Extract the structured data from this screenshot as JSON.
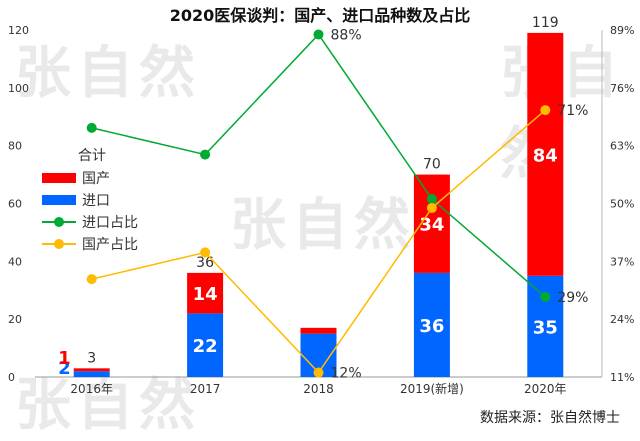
{
  "watermark": "张自然",
  "source": "数据来源：张自然博士",
  "chart_data": {
    "type": "bar",
    "title": "2020医保谈判：国产、进口品种数及占比",
    "categories": [
      "2016年",
      "2017",
      "2018",
      "2019(新增)",
      "2020年"
    ],
    "series": [
      {
        "name": "国产",
        "type": "bar",
        "stack": "total",
        "color": "#ff0000",
        "values": [
          1,
          14,
          2,
          34,
          84
        ],
        "labels": [
          "1",
          "14",
          "",
          "34",
          "84"
        ]
      },
      {
        "name": "进口",
        "type": "bar",
        "stack": "total",
        "color": "#0066ff",
        "values": [
          2,
          22,
          15,
          36,
          35
        ],
        "labels": [
          "2",
          "22",
          "",
          "36",
          "35"
        ]
      },
      {
        "name": "进口占比",
        "type": "line",
        "axis": "right",
        "color": "#00aa33",
        "values": [
          67,
          61,
          88,
          51,
          29
        ],
        "labels": [
          "",
          "",
          "88%",
          "",
          "29%"
        ]
      },
      {
        "name": "国产占比",
        "type": "line",
        "axis": "right",
        "color": "#ffbb00",
        "values": [
          33,
          39,
          12,
          49,
          71
        ],
        "labels": [
          "",
          "",
          "12%",
          "",
          "71%"
        ]
      }
    ],
    "totals": [
      3,
      36,
      17,
      70,
      119
    ],
    "total_labels": [
      "3",
      "36",
      "",
      "70",
      "119"
    ],
    "legend": {
      "title": "合计",
      "entries": [
        "国产",
        "进口",
        "进口占比",
        "国产占比"
      ],
      "position": "left"
    },
    "y_left": {
      "ylim": [
        0,
        120
      ],
      "ticks": [
        "0",
        "20",
        "40",
        "60",
        "80",
        "100",
        "120"
      ]
    },
    "y_right": {
      "ylim": [
        11,
        89
      ],
      "ticks": [
        "11%",
        "24%",
        "37%",
        "50%",
        "63%",
        "76%",
        "89%"
      ]
    },
    "grid": false
  }
}
